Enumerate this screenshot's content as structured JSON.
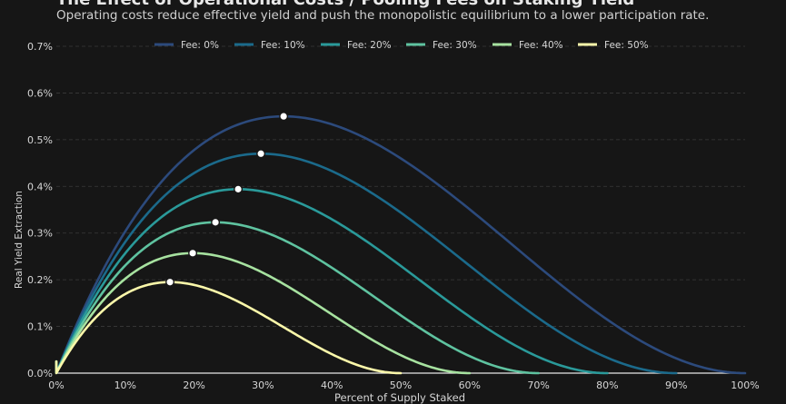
{
  "chart_data": {
    "type": "line",
    "title": "The Effect of Operational Costs / Pooling Fees on Staking Yield",
    "subtitle": "Operating costs reduce effective yield and push the monopolistic equilibrium to a lower participation rate.",
    "xlabel": "Percent of Supply Staked",
    "ylabel": "Real Yield Extraction",
    "xlim": [
      0,
      100
    ],
    "ylim": [
      0,
      0.7
    ],
    "x_ticks": [
      "0%",
      "10%",
      "20%",
      "30%",
      "40%",
      "50%",
      "60%",
      "70%",
      "80%",
      "90%",
      "100%"
    ],
    "y_ticks": [
      "0.0%",
      "0.1%",
      "0.2%",
      "0.3%",
      "0.4%",
      "0.5%",
      "0.6%",
      "0.7%"
    ],
    "grid": "horizontal dashed",
    "legend_placement": "top-center",
    "series": [
      {
        "name": "Fee: 0%",
        "color": "#2c4a7c",
        "zero_at": 100,
        "peak_x": 33,
        "peak_y": 0.55
      },
      {
        "name": "Fee: 10%",
        "color": "#1b6a8b",
        "zero_at": 90,
        "peak_x": 29.7,
        "peak_y": 0.47
      },
      {
        "name": "Fee: 20%",
        "color": "#2a9a9a",
        "zero_at": 80,
        "peak_x": 26.4,
        "peak_y": 0.394
      },
      {
        "name": "Fee: 30%",
        "color": "#5fc3a0",
        "zero_at": 70,
        "peak_x": 23.1,
        "peak_y": 0.323
      },
      {
        "name": "Fee: 40%",
        "color": "#a7e2a0",
        "zero_at": 60,
        "peak_x": 19.8,
        "peak_y": 0.257
      },
      {
        "name": "Fee: 50%",
        "color": "#fbf8aa",
        "zero_at": 50,
        "peak_x": 16.5,
        "peak_y": 0.195
      }
    ]
  }
}
